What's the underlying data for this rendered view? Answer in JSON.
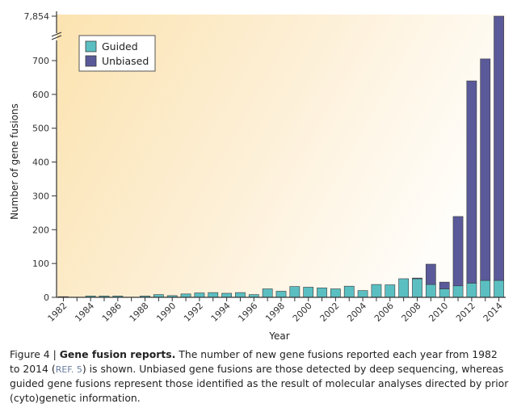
{
  "chart_data": {
    "type": "bar",
    "stacked": true,
    "xlabel": "Year",
    "ylabel": "Number of gene fusions",
    "y_ticks": [
      "0",
      "100",
      "200",
      "300",
      "400",
      "500",
      "600",
      "700",
      "7,854"
    ],
    "y_axis_break": true,
    "x_tick_labels": [
      "1982",
      "1984",
      "1986",
      "1988",
      "1990",
      "1992",
      "1994",
      "1996",
      "1998",
      "2000",
      "2002",
      "2004",
      "2006",
      "2008",
      "2010",
      "2012",
      "2014"
    ],
    "legend": [
      "Guided",
      "Unbiased"
    ],
    "legend_position": "top-left",
    "categories": [
      1982,
      1983,
      1984,
      1985,
      1986,
      1987,
      1988,
      1989,
      1990,
      1991,
      1992,
      1993,
      1994,
      1995,
      1996,
      1997,
      1998,
      1999,
      2000,
      2001,
      2002,
      2003,
      2004,
      2005,
      2006,
      2007,
      2008,
      2009,
      2010,
      2011,
      2012,
      2013,
      2014
    ],
    "series": [
      {
        "name": "Guided",
        "values": [
          2,
          0,
          4,
          4,
          4,
          0,
          4,
          8,
          5,
          10,
          13,
          14,
          12,
          14,
          8,
          25,
          18,
          32,
          30,
          28,
          25,
          33,
          20,
          38,
          37,
          55,
          55,
          38,
          25,
          34,
          42,
          50,
          50
        ]
      },
      {
        "name": "Unbiased",
        "values": [
          0,
          0,
          0,
          0,
          0,
          0,
          0,
          0,
          0,
          0,
          0,
          0,
          0,
          0,
          0,
          0,
          0,
          0,
          0,
          0,
          0,
          0,
          0,
          0,
          0,
          0,
          2,
          60,
          20,
          205,
          598,
          655,
          7804
        ]
      }
    ],
    "colors": {
      "guided": "#5bbfc2",
      "unbiased": "#5a5a9a"
    }
  },
  "caption": {
    "figure_label": "Figure 4 | ",
    "title": "Gene fusion reports.",
    "text1": " The number of new gene fusions reported each year from 1982 to 2014 (",
    "ref": "REF. 5",
    "text2": ") is shown. Unbiased gene fusions are those detected by deep sequencing, whereas guided gene fusions represent those identified as the result of molecular analyses directed by prior (cyto)genetic information."
  }
}
